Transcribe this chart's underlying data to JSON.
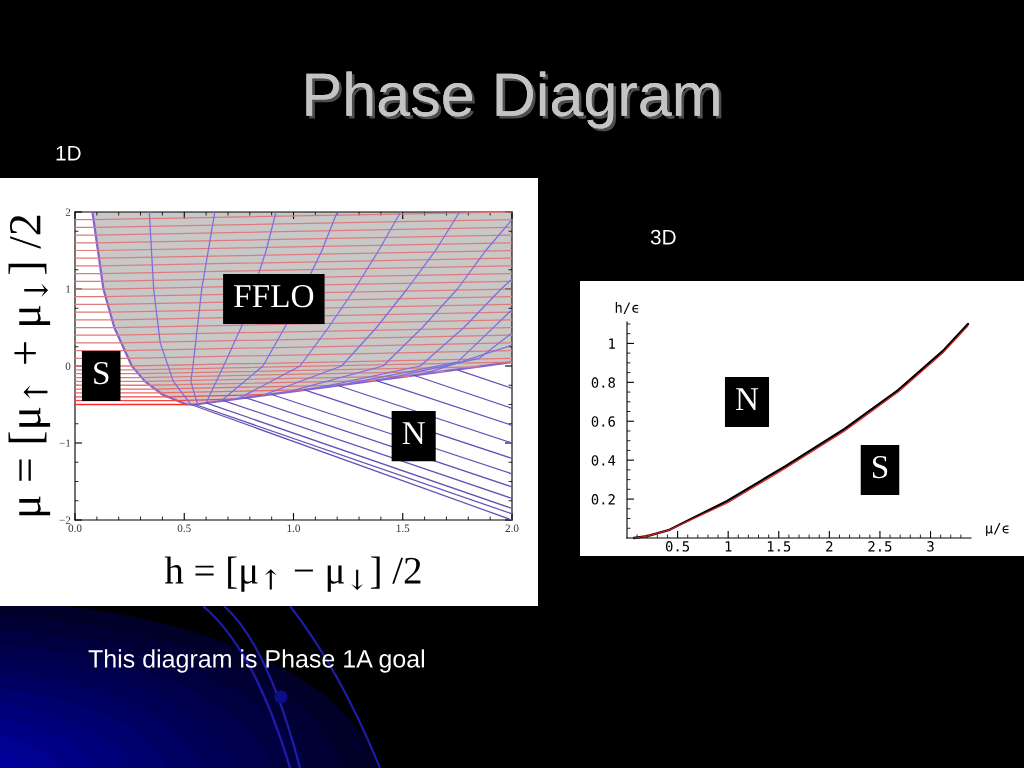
{
  "chart_data": [
    {
      "type": "other",
      "title": "Phase Diagram"
    },
    {
      "type": "line",
      "title": "1D",
      "xlabel": "h = [μ$_{↑}$ − μ$_{↓}$] /2",
      "ylabel": "μ = [μ$_{↑}$ + μ$_{↓}$] /2",
      "xlim": [
        0,
        2
      ],
      "ylim": [
        -2,
        2
      ],
      "xticks": [
        {
          "value": 0,
          "label": "0.0"
        },
        {
          "value": 0.1,
          "label": null
        },
        {
          "value": 0.2,
          "label": null
        },
        {
          "value": 0.3,
          "label": null
        },
        {
          "value": 0.4,
          "label": null
        },
        {
          "value": 0.5,
          "label": "0.5"
        },
        {
          "value": 0.6,
          "label": null
        },
        {
          "value": 0.7,
          "label": null
        },
        {
          "value": 0.8,
          "label": null
        },
        {
          "value": 0.9,
          "label": null
        },
        {
          "value": 1,
          "label": "1.0"
        },
        {
          "value": 1.1,
          "label": null
        },
        {
          "value": 1.2,
          "label": null
        },
        {
          "value": 1.3,
          "label": null
        },
        {
          "value": 1.4,
          "label": null
        },
        {
          "value": 1.5,
          "label": "1.5"
        },
        {
          "value": 1.6,
          "label": null
        },
        {
          "value": 1.7,
          "label": null
        },
        {
          "value": 1.8,
          "label": null
        },
        {
          "value": 1.9,
          "label": null
        },
        {
          "value": 2,
          "label": "2.0"
        }
      ],
      "yticks": [
        {
          "value": -2,
          "label": "−2"
        },
        {
          "value": -1.75,
          "label": null
        },
        {
          "value": -1.5,
          "label": null
        },
        {
          "value": -1.25,
          "label": null
        },
        {
          "value": -1,
          "label": "−1"
        },
        {
          "value": -0.75,
          "label": null
        },
        {
          "value": -0.5,
          "label": null
        },
        {
          "value": -0.25,
          "label": null
        },
        0,
        {
          "value": 0.25,
          "label": null
        },
        {
          "value": 0.5,
          "label": null
        },
        {
          "value": 0.75,
          "label": null
        },
        1,
        {
          "value": 1.25,
          "label": null
        },
        {
          "value": 1.5,
          "label": null
        },
        {
          "value": 1.75,
          "label": null
        },
        2
      ],
      "annotations": [
        {
          "text": "FFLO",
          "x": 0.91,
          "y": 0.87
        },
        {
          "text": "S",
          "x": 0.12,
          "y": -0.13
        },
        {
          "text": "N",
          "x": 1.55,
          "y": -0.91
        },
        "This diagram is Phase 1A goal"
      ],
      "series": [
        {
          "color": "#8a62d0",
          "x": [
            0.08,
            0.105,
            0.13,
            0.18,
            0.26,
            0.32,
            0.4,
            0.51,
            0.55,
            1.0,
            1.5,
            2.0
          ],
          "values": [
            2,
            1.5,
            1,
            0.5,
            0,
            -0.2,
            -0.37,
            -0.5,
            -0.5,
            -0.33,
            -0.14,
            0.05
          ],
          "lower": [
            2,
            1.5,
            1,
            0.5,
            0,
            -0.2,
            -0.37,
            -0.5,
            -0.5,
            -0.33,
            -0.14,
            0.05
          ],
          "upper": [
            2,
            2,
            2,
            2,
            2,
            2,
            2,
            2,
            2,
            2,
            2,
            2
          ]
        },
        {
          "color": "#ff2a2a",
          "x": [
            0,
            0.51
          ],
          "values": [
            -0.5,
            -0.5
          ]
        },
        {
          "color": "#f04848",
          "x": [
            0,
            0.47,
            0.72
          ],
          "values": [
            -0.45,
            -0.45,
            -0.43
          ]
        },
        {
          "color": "#f04848",
          "x": [
            0,
            0.43,
            0.88
          ],
          "values": [
            -0.4,
            -0.4,
            -0.37
          ]
        },
        {
          "color": "#e86a6a",
          "x": [
            0,
            0.38,
            1.05
          ],
          "values": [
            -0.35,
            -0.35,
            -0.31
          ]
        },
        {
          "color": "#e86a6a",
          "x": [
            0,
            0.36,
            1.21
          ],
          "values": [
            -0.3,
            -0.3,
            -0.25
          ]
        },
        {
          "color": "#e07a7a",
          "x": [
            0,
            0.34,
            1.37
          ],
          "values": [
            -0.25,
            -0.25,
            -0.19
          ]
        },
        {
          "color": "#e07a7a",
          "x": [
            0,
            0.32,
            1.53
          ],
          "values": [
            -0.2,
            -0.2,
            -0.13
          ]
        },
        {
          "color": "#e07a7a",
          "x": [
            0,
            0.3,
            1.69
          ],
          "values": [
            -0.15,
            -0.15,
            -0.07
          ]
        },
        {
          "color": "#e07a7a",
          "x": [
            0,
            0.29,
            1.85
          ],
          "values": [
            -0.1,
            -0.1,
            -0.01
          ]
        },
        {
          "color": "#e07a7a",
          "x": [
            0,
            0.27,
            2
          ],
          "values": [
            -0.05,
            -0.05,
            0.05
          ]
        },
        {
          "color": "#e07a7a",
          "x": [
            0,
            0.26,
            2
          ],
          "values": [
            0,
            0,
            0.1
          ]
        },
        {
          "color": "#e07a7a",
          "x": [
            0,
            0.24,
            2
          ],
          "values": [
            0.1,
            0.1,
            0.2
          ]
        },
        {
          "color": "#e07a7a",
          "x": [
            0,
            0.23,
            2
          ],
          "values": [
            0.2,
            0.2,
            0.3
          ]
        },
        {
          "color": "#e07a7a",
          "x": [
            0,
            0.21,
            2
          ],
          "values": [
            0.3,
            0.3,
            0.4
          ]
        },
        {
          "color": "#e07a7a",
          "x": [
            0,
            0.19,
            2
          ],
          "values": [
            0.4,
            0.4,
            0.5
          ]
        },
        {
          "color": "#e07a7a",
          "x": [
            0,
            0.18,
            2
          ],
          "values": [
            0.5,
            0.5,
            0.6
          ]
        },
        {
          "color": "#e07a7a",
          "x": [
            0,
            0.17,
            2
          ],
          "values": [
            0.6,
            0.6,
            0.7
          ]
        },
        {
          "color": "#e07a7a",
          "x": [
            0,
            0.16,
            2
          ],
          "values": [
            0.7,
            0.7,
            0.8
          ]
        },
        {
          "color": "#e07a7a",
          "x": [
            0,
            0.15,
            2
          ],
          "values": [
            0.8,
            0.8,
            0.9
          ]
        },
        {
          "color": "#e07a7a",
          "x": [
            0,
            0.14,
            2
          ],
          "values": [
            0.9,
            0.9,
            1.0
          ]
        },
        {
          "color": "#e07a7a",
          "x": [
            0,
            0.13,
            2
          ],
          "values": [
            1.0,
            1.0,
            1.1
          ]
        },
        {
          "color": "#e07a7a",
          "x": [
            0,
            0.125,
            2
          ],
          "values": [
            1.1,
            1.1,
            1.2
          ]
        },
        {
          "color": "#e07a7a",
          "x": [
            0,
            0.12,
            2
          ],
          "values": [
            1.2,
            1.2,
            1.3
          ]
        },
        {
          "color": "#e07a7a",
          "x": [
            0,
            0.115,
            2
          ],
          "values": [
            1.3,
            1.3,
            1.4
          ]
        },
        {
          "color": "#e07a7a",
          "x": [
            0,
            0.11,
            2
          ],
          "values": [
            1.4,
            1.4,
            1.5
          ]
        },
        {
          "color": "#e07a7a",
          "x": [
            0,
            0.105,
            2
          ],
          "values": [
            1.5,
            1.5,
            1.6
          ]
        },
        {
          "color": "#e07a7a",
          "x": [
            0,
            0.1,
            2
          ],
          "values": [
            1.6,
            1.6,
            1.7
          ]
        },
        {
          "color": "#e07a7a",
          "x": [
            0,
            0.095,
            2
          ],
          "values": [
            1.7,
            1.7,
            1.8
          ]
        },
        {
          "color": "#e07a7a",
          "x": [
            0,
            0.09,
            2
          ],
          "values": [
            1.8,
            1.8,
            1.9
          ]
        },
        {
          "color": "#e07a7a",
          "x": [
            0,
            0.085,
            2
          ],
          "values": [
            1.9,
            1.9,
            2.0
          ]
        },
        {
          "color": "#7a6fe0",
          "x": [
            0.34,
            0.36,
            0.39,
            0.45,
            0.53
          ],
          "values": [
            2,
            1,
            0.3,
            -0.2,
            -0.5
          ]
        },
        {
          "color": "#7a6fe0",
          "x": [
            0.64,
            0.58,
            0.54,
            0.53,
            0.56
          ],
          "values": [
            2,
            1,
            0,
            -0.2,
            -0.49
          ]
        },
        {
          "color": "#7a6fe0",
          "x": [
            0.92,
            0.875,
            0.76,
            0.68,
            0.6
          ],
          "values": [
            2,
            1.5,
            0.5,
            0,
            -0.48
          ]
        },
        {
          "color": "#7a6fe0",
          "x": [
            1.2,
            1.13,
            0.96,
            0.86,
            0.67
          ],
          "values": [
            2,
            1.5,
            0.5,
            0,
            -0.45
          ]
        },
        {
          "color": "#7a6fe0",
          "x": [
            1.49,
            1.39,
            1.28,
            1.16,
            1.03,
            0.75
          ],
          "values": [
            2,
            1.5,
            1,
            0.5,
            0,
            -0.42
          ]
        },
        {
          "color": "#7a6fe0",
          "x": [
            1.76,
            1.65,
            1.52,
            1.38,
            1.22,
            0.85
          ],
          "values": [
            2,
            1.5,
            1,
            0.5,
            0,
            -0.39
          ]
        },
        {
          "color": "#7a6fe0",
          "x": [
            2.0,
            1.88,
            1.75,
            1.59,
            1.41,
            0.97
          ],
          "values": [
            1.9,
            1.5,
            1,
            0.5,
            0,
            -0.34
          ]
        },
        {
          "color": "#7a6fe0",
          "x": [
            2.0,
            1.95,
            1.78,
            1.58,
            1.1
          ],
          "values": [
            1.13,
            1,
            0.5,
            0,
            -0.29
          ]
        },
        {
          "color": "#7a6fe0",
          "x": [
            2.0,
            1.75,
            1.25
          ],
          "values": [
            0.73,
            0.05,
            -0.23
          ]
        },
        {
          "color": "#7a6fe0",
          "x": [
            2.0,
            1.85,
            1.4
          ],
          "values": [
            0.43,
            0.1,
            -0.18
          ]
        },
        {
          "color": "#7a6fe0",
          "x": [
            2.0,
            1.6
          ],
          "values": [
            0.27,
            -0.1
          ]
        },
        {
          "color": "#6650b8",
          "x": [
            0.53,
            2
          ],
          "values": [
            -0.5,
            -2
          ]
        },
        {
          "color": "#6650b8",
          "x": [
            0.55,
            2
          ],
          "values": [
            -0.5,
            -1.92
          ]
        },
        {
          "color": "#6650b8",
          "x": [
            0.6,
            2
          ],
          "values": [
            -0.48,
            -1.85
          ]
        },
        {
          "color": "#6650b8",
          "x": [
            0.68,
            2
          ],
          "values": [
            -0.45,
            -1.72
          ]
        },
        {
          "color": "#6650b8",
          "x": [
            0.78,
            2
          ],
          "values": [
            -0.41,
            -1.57
          ]
        },
        {
          "color": "#6650b8",
          "x": [
            0.9,
            2
          ],
          "values": [
            -0.37,
            -1.4
          ]
        },
        {
          "color": "#6650b8",
          "x": [
            1.05,
            2
          ],
          "values": [
            -0.31,
            -1.2
          ]
        },
        {
          "color": "#6650b8",
          "x": [
            1.2,
            2
          ],
          "values": [
            -0.25,
            -1.0
          ]
        },
        {
          "color": "#6650b8",
          "x": [
            1.38,
            2
          ],
          "values": [
            -0.19,
            -0.77
          ]
        },
        {
          "color": "#6650b8",
          "x": [
            1.55,
            2
          ],
          "values": [
            -0.12,
            -0.55
          ]
        },
        {
          "color": "#6650b8",
          "x": [
            1.75,
            2
          ],
          "values": [
            -0.05,
            -0.29
          ]
        }
      ]
    },
    {
      "type": "line",
      "title": "3D",
      "xlabel": "μ/ϵ",
      "ylabel": "h/ϵ",
      "xlim": [
        0,
        3.4
      ],
      "ylim": [
        0,
        1.11
      ],
      "xticks": [
        {
          "value": 0.1,
          "label": null
        },
        {
          "value": 0.2,
          "label": null
        },
        {
          "value": 0.3,
          "label": null
        },
        {
          "value": 0.4,
          "label": null
        },
        0.5,
        {
          "value": 0.6,
          "label": null
        },
        {
          "value": 0.7,
          "label": null
        },
        {
          "value": 0.8,
          "label": null
        },
        {
          "value": 0.9,
          "label": null
        },
        1,
        {
          "value": 1.1,
          "label": null
        },
        {
          "value": 1.2,
          "label": null
        },
        {
          "value": 1.3,
          "label": null
        },
        {
          "value": 1.4,
          "label": null
        },
        1.5,
        {
          "value": 1.6,
          "label": null
        },
        {
          "value": 1.7,
          "label": null
        },
        {
          "value": 1.8,
          "label": null
        },
        {
          "value": 1.9,
          "label": null
        },
        2,
        {
          "value": 2.1,
          "label": null
        },
        {
          "value": 2.2,
          "label": null
        },
        {
          "value": 2.3,
          "label": null
        },
        {
          "value": 2.4,
          "label": null
        },
        2.5,
        {
          "value": 2.6,
          "label": null
        },
        {
          "value": 2.7,
          "label": null
        },
        {
          "value": 2.8,
          "label": null
        },
        {
          "value": 2.9,
          "label": null
        },
        3,
        {
          "value": 3.1,
          "label": null
        },
        {
          "value": 3.2,
          "label": null
        },
        {
          "value": 3.3,
          "label": null
        }
      ],
      "yticks": [
        {
          "value": 0.05,
          "label": null
        },
        {
          "value": 0.1,
          "label": null
        },
        {
          "value": 0.15,
          "label": null
        },
        0.2,
        {
          "value": 0.25,
          "label": null
        },
        {
          "value": 0.3,
          "label": null
        },
        {
          "value": 0.35,
          "label": null
        },
        0.4,
        {
          "value": 0.45,
          "label": null
        },
        {
          "value": 0.5,
          "label": null
        },
        {
          "value": 0.55,
          "label": null
        },
        0.6,
        {
          "value": 0.65,
          "label": null
        },
        {
          "value": 0.7,
          "label": null
        },
        {
          "value": 0.75,
          "label": null
        },
        0.8,
        {
          "value": 0.85,
          "label": null
        },
        {
          "value": 0.9,
          "label": null
        },
        {
          "value": 0.95,
          "label": null
        },
        1,
        {
          "value": 1.05,
          "label": null
        },
        {
          "value": 1.1,
          "label": null
        }
      ],
      "annotations": [
        "N",
        "S"
      ],
      "series": [
        {
          "color": "#000000",
          "x": [
            0.07,
            0.2,
            0.41,
            0.99,
            1.57,
            2.15,
            2.68,
            3.12,
            3.37
          ],
          "values": [
            0,
            0.01,
            0.04,
            0.19,
            0.37,
            0.56,
            0.76,
            0.96,
            1.1
          ]
        },
        {
          "color": "#d42020",
          "x": [
            0.07,
            0.2,
            0.41,
            0.99,
            1.57,
            2.15,
            2.68,
            3.12,
            3.37
          ],
          "values": [
            0,
            0.01,
            0.04,
            0.18,
            0.36,
            0.55,
            0.75,
            0.95,
            1.09
          ]
        }
      ]
    }
  ]
}
